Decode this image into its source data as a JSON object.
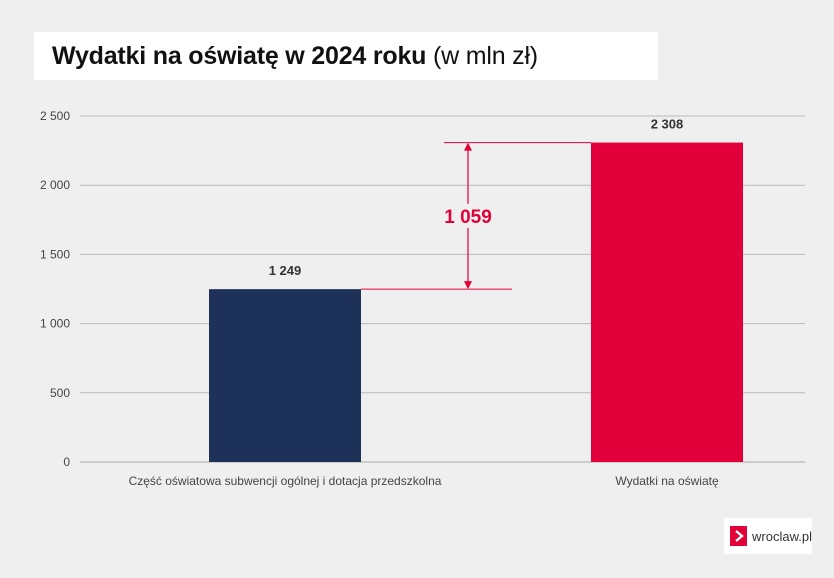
{
  "title": {
    "main": "Wydatki na oświatę w 2024 roku",
    "unit": "(w mln zł)"
  },
  "logo": {
    "text": "wroclaw.pl",
    "icon": "chevron-right-icon",
    "color": "#e2003a"
  },
  "chart_data": {
    "type": "bar",
    "categories": [
      "Część oświatowa subwencji ogólnej i dotacja przedszkolna",
      "Wydatki na oświatę"
    ],
    "values": [
      1249,
      2308
    ],
    "value_labels": [
      "1 249",
      "2 308"
    ],
    "colors": [
      "#1e3158",
      "#e2003a"
    ],
    "ylim": [
      0,
      2500
    ],
    "yticks": [
      0,
      500,
      1000,
      1500,
      2000,
      2500
    ],
    "ytick_labels": [
      "0",
      "500",
      "1 000",
      "1 500",
      "2 000",
      "2 500"
    ],
    "grid": true,
    "annotation": {
      "type": "difference",
      "from": 1249,
      "to": 2308,
      "value": 1059,
      "label": "1 059",
      "color": "#e2003a"
    },
    "xlabel": "",
    "ylabel": ""
  }
}
